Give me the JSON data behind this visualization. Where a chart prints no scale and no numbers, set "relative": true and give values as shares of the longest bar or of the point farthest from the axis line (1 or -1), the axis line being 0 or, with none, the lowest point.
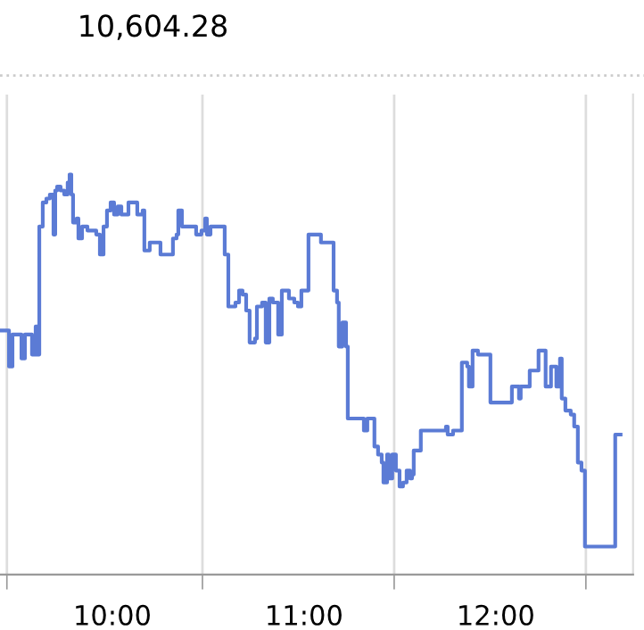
{
  "chart_data": {
    "type": "step",
    "title": "10,604.28",
    "relative": true,
    "grid": "x",
    "color": "#5b7bd5",
    "xlim": [
      9.414,
      12.716
    ],
    "xticks": [
      {
        "value": 9.45,
        "label": null
      },
      {
        "value": 10,
        "label": "10:00"
      },
      {
        "value": 10.47,
        "label": null
      },
      {
        "value": 11,
        "label": "11:00"
      },
      {
        "value": 11.47,
        "label": null
      },
      {
        "value": 12,
        "label": "12:00"
      },
      {
        "value": 12.47,
        "label": null
      }
    ],
    "x": [
      9.414,
      9.461,
      9.479,
      9.526,
      9.544,
      9.581,
      9.6,
      9.609,
      9.619,
      9.637,
      9.656,
      9.674,
      9.693,
      9.702,
      9.712,
      9.73,
      9.749,
      9.767,
      9.777,
      9.786,
      9.795,
      9.814,
      9.823,
      9.842,
      9.87,
      9.916,
      9.935,
      9.954,
      9.972,
      9.991,
      10.009,
      10.028,
      10.047,
      10.084,
      10.121,
      10.13,
      10.158,
      10.167,
      10.195,
      10.233,
      10.251,
      10.298,
      10.316,
      10.335,
      10.344,
      10.363,
      10.391,
      10.437,
      10.465,
      10.484,
      10.493,
      10.512,
      10.567,
      10.586,
      10.605,
      10.642,
      10.661,
      10.679,
      10.698,
      10.716,
      10.744,
      10.754,
      10.781,
      10.8,
      10.819,
      10.837,
      10.856,
      10.865,
      10.884,
      10.921,
      10.949,
      10.968,
      10.986,
      11.005,
      11.023,
      11.051,
      11.088,
      11.144,
      11.154,
      11.172,
      11.181,
      11.2,
      11.219,
      11.228,
      11.274,
      11.302,
      11.312,
      11.33,
      11.349,
      11.367,
      11.386,
      11.405,
      11.414,
      11.433,
      11.442,
      11.46,
      11.479,
      11.498,
      11.516,
      11.535,
      11.553,
      11.563,
      11.572,
      11.591,
      11.609,
      11.647,
      11.684,
      11.74,
      11.749,
      11.777,
      11.814,
      11.823,
      11.851,
      11.86,
      11.879,
      11.907,
      11.935,
      11.972,
      12.019,
      12.074,
      12.084,
      12.112,
      12.121,
      12.13,
      12.158,
      12.177,
      12.205,
      12.223,
      12.242,
      12.26,
      12.288,
      12.316,
      12.335,
      12.344,
      12.363,
      12.391,
      12.409,
      12.428,
      12.447,
      12.465,
      12.577,
      12.595,
      12.623,
      12.651
    ],
    "values": [
      0.61,
      0.52,
      0.6,
      0.54,
      0.6,
      0.55,
      0.62,
      0.55,
      0.87,
      0.93,
      0.94,
      0.95,
      0.85,
      0.96,
      0.97,
      0.96,
      0.95,
      0.98,
      1.0,
      0.95,
      0.88,
      0.89,
      0.84,
      0.87,
      0.86,
      0.85,
      0.8,
      0.87,
      0.91,
      0.93,
      0.9,
      0.92,
      0.9,
      0.93,
      0.93,
      0.9,
      0.91,
      0.81,
      0.83,
      0.83,
      0.8,
      0.8,
      0.84,
      0.85,
      0.91,
      0.87,
      0.87,
      0.85,
      0.86,
      0.89,
      0.85,
      0.87,
      0.87,
      0.8,
      0.67,
      0.68,
      0.71,
      0.7,
      0.66,
      0.58,
      0.59,
      0.67,
      0.68,
      0.58,
      0.69,
      0.68,
      0.68,
      0.6,
      0.71,
      0.69,
      0.68,
      0.67,
      0.71,
      0.71,
      0.85,
      0.85,
      0.83,
      0.83,
      0.71,
      0.68,
      0.57,
      0.63,
      0.57,
      0.39,
      0.39,
      0.39,
      0.36,
      0.39,
      0.39,
      0.32,
      0.3,
      0.28,
      0.23,
      0.3,
      0.24,
      0.3,
      0.26,
      0.22,
      0.23,
      0.26,
      0.24,
      0.25,
      0.31,
      0.31,
      0.36,
      0.36,
      0.36,
      0.37,
      0.35,
      0.36,
      0.36,
      0.53,
      0.52,
      0.47,
      0.56,
      0.55,
      0.55,
      0.43,
      0.43,
      0.43,
      0.47,
      0.47,
      0.44,
      0.47,
      0.47,
      0.51,
      0.51,
      0.56,
      0.56,
      0.47,
      0.52,
      0.47,
      0.54,
      0.44,
      0.41,
      0.4,
      0.37,
      0.28,
      0.26,
      0.07,
      0.07,
      0.07,
      0.35,
      0.35
    ]
  }
}
